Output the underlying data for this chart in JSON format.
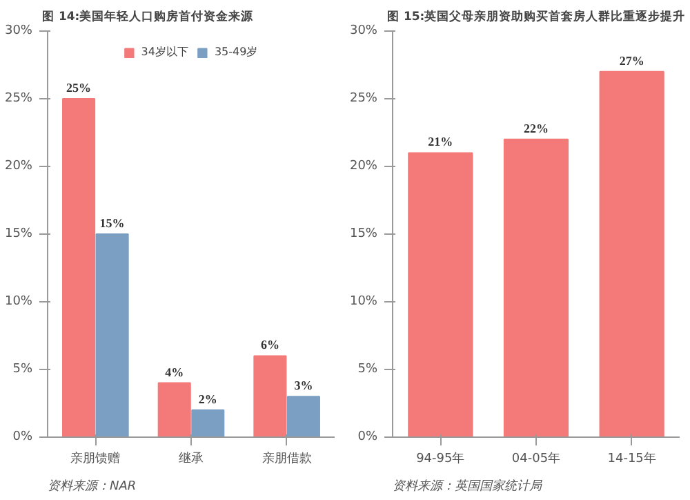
{
  "chart_data": [
    {
      "type": "bar",
      "title": "图 14:美国年轻人口购房首付资金来源",
      "categories": [
        "亲朋馈赠",
        "继承",
        "亲朋借款"
      ],
      "series": [
        {
          "name": "34岁以下",
          "color": "#f47a7a",
          "values": [
            25,
            4,
            6
          ],
          "value_labels": [
            "25%",
            "4%",
            "6%"
          ]
        },
        {
          "name": "35-49岁",
          "color": "#7b9fc2",
          "values": [
            15,
            2,
            3
          ],
          "value_labels": [
            "15%",
            "2%",
            "3%"
          ]
        }
      ],
      "ylim": [
        0,
        30
      ],
      "yticks": [
        {
          "value": 0,
          "label": "0%"
        },
        {
          "value": 5,
          "label": "5%"
        },
        {
          "value": 10,
          "label": "10%"
        },
        {
          "value": 15,
          "label": "15%"
        },
        {
          "value": 20,
          "label": "20%"
        },
        {
          "value": 25,
          "label": "25%"
        },
        {
          "value": 30,
          "label": "30%"
        }
      ],
      "legend": "top",
      "annotations": [
        "资料来源：NAR"
      ]
    },
    {
      "type": "bar",
      "title": "图 15:英国父母亲朋资助购买首套房人群比重逐步提升",
      "categories": [
        "94-95年",
        "04-05年",
        "14-15年"
      ],
      "series": [
        {
          "color": "#f47a7a",
          "values": [
            21,
            22,
            27
          ],
          "value_labels": [
            "21%",
            "22%",
            "27%"
          ]
        }
      ],
      "ylim": [
        0,
        30
      ],
      "yticks": [
        {
          "value": 0,
          "label": "0%"
        },
        {
          "value": 5,
          "label": "5%"
        },
        {
          "value": 10,
          "label": "10%"
        },
        {
          "value": 15,
          "label": "15%"
        },
        {
          "value": 20,
          "label": "20%"
        },
        {
          "value": 25,
          "label": "25%"
        },
        {
          "value": 30,
          "label": "30%"
        }
      ],
      "annotations": [
        "资料来源：英国国家统计局"
      ]
    }
  ]
}
